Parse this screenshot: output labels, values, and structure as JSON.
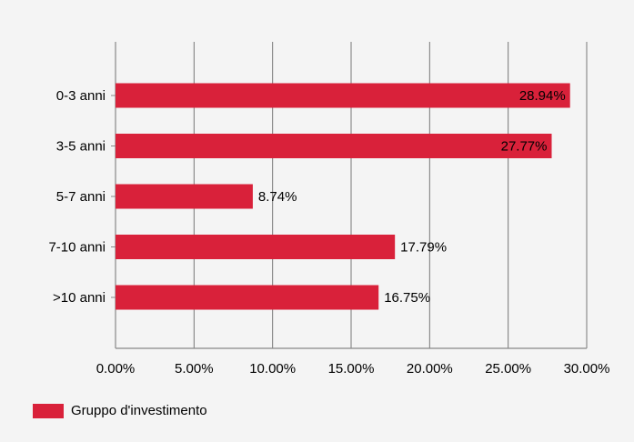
{
  "chart_data": {
    "type": "bar",
    "orientation": "horizontal",
    "categories": [
      "0-3 anni",
      "3-5 anni",
      "5-7 anni",
      "7-10 anni",
      ">10 anni"
    ],
    "series": [
      {
        "name": "Gruppo d'investimento",
        "values": [
          28.94,
          27.77,
          8.74,
          17.79,
          16.75
        ],
        "labels": [
          "28.94%",
          "27.77%",
          "8.74%",
          "17.79%",
          "16.75%"
        ],
        "color": "#d9213a"
      }
    ],
    "xlim": [
      0,
      30
    ],
    "ticks": [
      0,
      5,
      10,
      15,
      20,
      25,
      30
    ],
    "tick_labels": [
      "0.00%",
      "5.00%",
      "10.00%",
      "15.00%",
      "20.00%",
      "25.00%",
      "30.00%"
    ],
    "grid": "vertical",
    "legend_position": "bottom-left"
  }
}
